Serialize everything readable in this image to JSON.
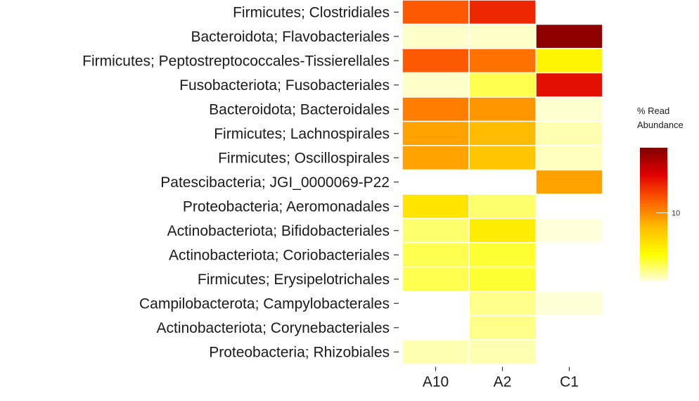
{
  "chart_data": {
    "type": "heatmap",
    "title": "",
    "xlabel": "",
    "ylabel": "",
    "columns": [
      "A10",
      "A2",
      "C1"
    ],
    "rows": [
      "Firmicutes; Clostridiales",
      "Bacteroidota; Flavobacteriales",
      "Firmicutes; Peptostreptococcales-Tissierellales",
      "Fusobacteriota; Fusobacteriales",
      "Bacteroidota; Bacteroidales",
      "Firmicutes; Lachnospirales",
      "Firmicutes; Oscillospirales",
      "Patescibacteria; JGI_0000069-P22",
      "Proteobacteria; Aeromonadales",
      "Actinobacteriota; Bifidobacteriales",
      "Actinobacteriota; Coriobacteriales",
      "Firmicutes; Erysipelotrichales",
      "Campilobacterota; Campylobacterales",
      "Actinobacteriota; Corynebacteriales",
      "Proteobacteria; Rhizobiales"
    ],
    "values": [
      [
        12.0,
        14.0,
        null
      ],
      [
        0.4,
        0.4,
        19.0
      ],
      [
        12.0,
        11.0,
        4.5
      ],
      [
        0.4,
        2.5,
        15.0
      ],
      [
        10.5,
        9.5,
        0.3
      ],
      [
        9.0,
        8.0,
        0.8
      ],
      [
        9.0,
        7.5,
        0.6
      ],
      [
        null,
        null,
        9.0
      ],
      [
        5.5,
        2.0,
        null
      ],
      [
        2.0,
        5.0,
        0.1
      ],
      [
        2.5,
        3.0,
        null
      ],
      [
        2.5,
        3.0,
        null
      ],
      [
        null,
        1.5,
        0.2
      ],
      [
        null,
        1.5,
        null
      ],
      [
        0.8,
        0.8,
        null
      ]
    ],
    "legend": {
      "title_line1": "% Read",
      "title_line2": "Abundance",
      "ticks": [
        10
      ],
      "range": [
        0,
        19.5
      ],
      "placement": "right",
      "colors": [
        "#ffffe0",
        "#ffff00",
        "#ffc000",
        "#ff6000",
        "#e00000",
        "#800000"
      ]
    },
    "grid": false
  }
}
